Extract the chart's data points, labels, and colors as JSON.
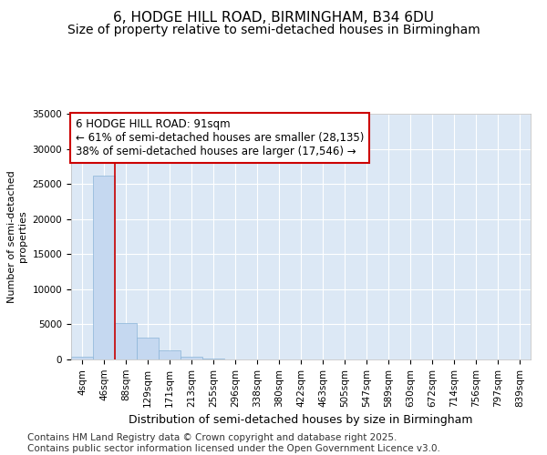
{
  "title": "6, HODGE HILL ROAD, BIRMINGHAM, B34 6DU",
  "subtitle": "Size of property relative to semi-detached houses in Birmingham",
  "xlabel": "Distribution of semi-detached houses by size in Birmingham",
  "ylabel": "Number of semi-detached\nproperties",
  "categories": [
    "4sqm",
    "46sqm",
    "88sqm",
    "129sqm",
    "171sqm",
    "213sqm",
    "255sqm",
    "296sqm",
    "338sqm",
    "380sqm",
    "422sqm",
    "463sqm",
    "505sqm",
    "547sqm",
    "589sqm",
    "630sqm",
    "672sqm",
    "714sqm",
    "756sqm",
    "797sqm",
    "839sqm"
  ],
  "values": [
    400,
    26200,
    5200,
    3100,
    1300,
    430,
    130,
    0,
    0,
    0,
    0,
    0,
    0,
    0,
    0,
    0,
    0,
    0,
    0,
    0,
    0
  ],
  "bar_color": "#c5d8f0",
  "bar_edge_color": "#8ab4d8",
  "background_color": "#dce8f5",
  "grid_color": "#ffffff",
  "annotation_box_color": "#ffffff",
  "annotation_box_edge": "#cc0000",
  "annotation_text_line1": "6 HODGE HILL ROAD: 91sqm",
  "annotation_text_line2": "← 61% of semi-detached houses are smaller (28,135)",
  "annotation_text_line3": "38% of semi-detached houses are larger (17,546) →",
  "vline_color": "#cc0000",
  "vline_x_index": 2,
  "ylim": [
    0,
    35000
  ],
  "yticks": [
    0,
    5000,
    10000,
    15000,
    20000,
    25000,
    30000,
    35000
  ],
  "footer": "Contains HM Land Registry data © Crown copyright and database right 2025.\nContains public sector information licensed under the Open Government Licence v3.0.",
  "title_fontsize": 11,
  "subtitle_fontsize": 10,
  "annotation_fontsize": 8.5,
  "footer_fontsize": 7.5,
  "tick_fontsize": 7.5,
  "ylabel_fontsize": 8,
  "xlabel_fontsize": 9
}
